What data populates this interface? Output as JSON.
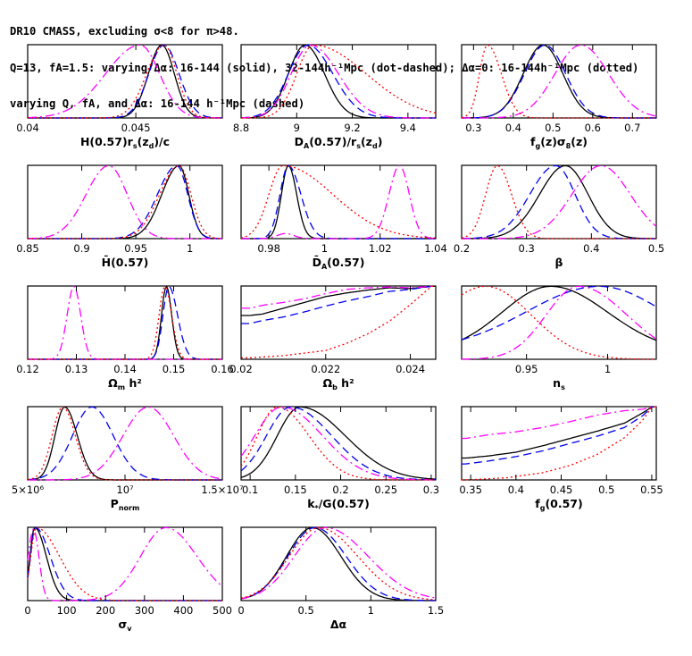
{
  "header": {
    "line1": "DR10 CMASS, excluding σ<8 for π>48.",
    "line2": "Q=13, fA=1.5: varying Δα: 16-144 (solid), 32-144h⁻¹Mpc (dot-dashed); Δα=0: 16-144h⁻¹Mpc (dotted)",
    "line3": "varying Q, fA, and Δα: 16-144 h⁻¹Mpc (dashed)"
  },
  "colors": {
    "solid": "#000000",
    "dashed": "#0000ee",
    "dotdashed": "#ff00ff",
    "dotted": "#ff0000"
  },
  "chart_data": [
    {
      "type": "line",
      "xlabel": "H(0.57)r_s(z_d)/c",
      "xlim": [
        0.04,
        0.049
      ],
      "ylim": [
        0,
        1
      ],
      "ticks": [
        "0.04",
        "0.045"
      ],
      "tick_values": [
        0.04,
        0.045
      ],
      "series": [
        {
          "style": "solid",
          "peak": 0.0462,
          "sl": 0.00062,
          "sr": 0.00058
        },
        {
          "style": "dashed",
          "peak": 0.0463,
          "sl": 0.0007,
          "sr": 0.0007
        },
        {
          "style": "dotdashed",
          "peak": 0.0452,
          "sl": 0.0016,
          "sr": 0.0009
        },
        {
          "style": "dotted",
          "peak": 0.0463,
          "sl": 0.0008,
          "sr": 0.0006
        }
      ]
    },
    {
      "type": "line",
      "xlabel": "D_A(0.57)/r_s(z_d)",
      "xlim": [
        8.8,
        9.5
      ],
      "ylim": [
        0,
        1
      ],
      "ticks": [
        "8.8",
        "9",
        "9.2",
        "9.4"
      ],
      "tick_values": [
        8.8,
        9.0,
        9.2,
        9.4
      ],
      "series": [
        {
          "style": "solid",
          "peak": 9.03,
          "sl": 0.06,
          "sr": 0.07
        },
        {
          "style": "dashed",
          "peak": 9.04,
          "sl": 0.07,
          "sr": 0.09
        },
        {
          "style": "dotdashed",
          "peak": 9.05,
          "sl": 0.07,
          "sr": 0.1
        },
        {
          "style": "dotted",
          "peak": 9.06,
          "sl": 0.06,
          "sr": 0.19
        }
      ]
    },
    {
      "type": "line",
      "xlabel": "f_g(z)σ_8(z)",
      "xlim": [
        0.27,
        0.76
      ],
      "ylim": [
        0,
        1
      ],
      "ticks": [
        "0.3",
        "0.4",
        "0.5",
        "0.6",
        "0.7"
      ],
      "tick_values": [
        0.3,
        0.4,
        0.5,
        0.6,
        0.7
      ],
      "series": [
        {
          "style": "solid",
          "peak": 0.475,
          "sl": 0.05,
          "sr": 0.05
        },
        {
          "style": "dashed",
          "peak": 0.48,
          "sl": 0.052,
          "sr": 0.052
        },
        {
          "style": "dotdashed",
          "peak": 0.57,
          "sl": 0.065,
          "sr": 0.07
        },
        {
          "style": "dotted",
          "peak": 0.335,
          "sl": 0.02,
          "sr": 0.035
        }
      ]
    },
    {
      "type": "line",
      "xlabel": "H̄(0.57)",
      "xlim": [
        0.85,
        1.03
      ],
      "ylim": [
        0,
        1
      ],
      "ticks": [
        "0.85",
        "0.9",
        "0.95",
        "1"
      ],
      "tick_values": [
        0.85,
        0.9,
        0.95,
        1.0
      ],
      "series": [
        {
          "style": "solid",
          "peak": 0.99,
          "sl": 0.016,
          "sr": 0.009
        },
        {
          "style": "dashed",
          "peak": 0.988,
          "sl": 0.018,
          "sr": 0.01
        },
        {
          "style": "dotdashed",
          "peak": 0.925,
          "sl": 0.021,
          "sr": 0.017
        },
        {
          "style": "dotted",
          "peak": 0.99,
          "sl": 0.018,
          "sr": 0.011
        }
      ]
    },
    {
      "type": "line",
      "xlabel": "D̄_A(0.57)",
      "xlim": [
        0.97,
        1.04
      ],
      "ylim": [
        0,
        1
      ],
      "ticks": [
        "0.98",
        "1",
        "1.02",
        "1.04"
      ],
      "tick_values": [
        0.98,
        1.0,
        1.02,
        1.04
      ],
      "series": [
        {
          "style": "solid",
          "peak": 0.987,
          "sl": 0.0025,
          "sr": 0.003
        },
        {
          "style": "dashed",
          "peak": 0.987,
          "sl": 0.003,
          "sr": 0.0045
        },
        {
          "style": "dotdashed",
          "peak": 1.027,
          "sl": 0.0038,
          "sr": 0.0035,
          "bump": [
            0.986,
            0.003,
            0.07
          ]
        },
        {
          "style": "dotted",
          "peak": 0.985,
          "sl": 0.005,
          "sr": 0.018
        }
      ]
    },
    {
      "type": "line",
      "xlabel": "β",
      "xlim": [
        0.2,
        0.5
      ],
      "ylim": [
        0,
        1
      ],
      "ticks": [
        "0.2",
        "0.3",
        "0.4",
        "0.5"
      ],
      "tick_values": [
        0.2,
        0.3,
        0.4,
        0.5
      ],
      "series": [
        {
          "style": "solid",
          "peak": 0.36,
          "sl": 0.04,
          "sr": 0.035
        },
        {
          "style": "dashed",
          "peak": 0.345,
          "sl": 0.04,
          "sr": 0.03
        },
        {
          "style": "dotdashed",
          "peak": 0.415,
          "sl": 0.045,
          "sr": 0.045
        },
        {
          "style": "dotted",
          "peak": 0.255,
          "sl": 0.018,
          "sr": 0.022
        }
      ]
    },
    {
      "type": "line",
      "xlabel": "Ω_m h²",
      "xlim": [
        0.12,
        0.16
      ],
      "ylim": [
        0,
        1
      ],
      "ticks": [
        "0.12",
        "0.13",
        "0.14",
        "0.15",
        "0.16"
      ],
      "tick_values": [
        0.12,
        0.13,
        0.14,
        0.15,
        0.16
      ],
      "series": [
        {
          "style": "solid",
          "peak": 0.1485,
          "sl": 0.001,
          "sr": 0.0011
        },
        {
          "style": "dashed",
          "peak": 0.149,
          "sl": 0.0012,
          "sr": 0.0018
        },
        {
          "style": "dotdashed",
          "peak": 0.1295,
          "sl": 0.0014,
          "sr": 0.0014
        },
        {
          "style": "dotted",
          "peak": 0.1482,
          "sl": 0.0012,
          "sr": 0.0014
        }
      ]
    },
    {
      "type": "line",
      "xlabel": "Ω_b h²",
      "xlim": [
        0.02,
        0.0246
      ],
      "ylim": [
        0,
        1
      ],
      "ticks": [
        "0.02",
        "0.022",
        "0.024"
      ],
      "tick_values": [
        0.02,
        0.022,
        0.024
      ],
      "series": [
        {
          "style": "solid",
          "points": [
            [
              0.0202,
              0.6
            ],
            [
              0.0205,
              0.62
            ],
            [
              0.021,
              0.7
            ],
            [
              0.0215,
              0.78
            ],
            [
              0.022,
              0.86
            ],
            [
              0.0225,
              0.91
            ],
            [
              0.023,
              0.95
            ],
            [
              0.0235,
              0.98
            ],
            [
              0.024,
              0.97
            ],
            [
              0.0245,
              1.0
            ]
          ]
        },
        {
          "style": "dashed",
          "points": [
            [
              0.0202,
              0.49
            ],
            [
              0.0205,
              0.53
            ],
            [
              0.021,
              0.58
            ],
            [
              0.0215,
              0.65
            ],
            [
              0.022,
              0.73
            ],
            [
              0.0225,
              0.8
            ],
            [
              0.023,
              0.86
            ],
            [
              0.0235,
              0.93
            ],
            [
              0.024,
              0.96
            ],
            [
              0.0245,
              1.0
            ]
          ]
        },
        {
          "style": "dotdashed",
          "points": [
            [
              0.0202,
              0.7
            ],
            [
              0.0205,
              0.74
            ],
            [
              0.021,
              0.78
            ],
            [
              0.0215,
              0.83
            ],
            [
              0.022,
              0.9
            ],
            [
              0.0225,
              0.96
            ],
            [
              0.023,
              0.98
            ],
            [
              0.0235,
              0.99
            ],
            [
              0.024,
              0.98
            ],
            [
              0.0245,
              1.0
            ]
          ]
        },
        {
          "style": "dotted",
          "points": [
            [
              0.0202,
              0.02
            ],
            [
              0.021,
              0.05
            ],
            [
              0.022,
              0.12
            ],
            [
              0.0225,
              0.22
            ],
            [
              0.023,
              0.35
            ],
            [
              0.0235,
              0.52
            ],
            [
              0.024,
              0.75
            ],
            [
              0.0243,
              0.9
            ],
            [
              0.0245,
              1.0
            ]
          ]
        }
      ]
    },
    {
      "type": "line",
      "xlabel": "n_s",
      "xlim": [
        0.91,
        1.03
      ],
      "ylim": [
        0,
        1
      ],
      "ticks": [
        "0.95",
        "1"
      ],
      "tick_values": [
        0.95,
        1.0
      ],
      "series": [
        {
          "style": "solid",
          "peak": 0.965,
          "sl": 0.03,
          "sr": 0.035,
          "floor": 0.1
        },
        {
          "style": "dashed",
          "peak": 0.995,
          "sl": 0.045,
          "sr": 0.04,
          "floor": 0.12
        },
        {
          "style": "dotdashed",
          "peak": 0.982,
          "sl": 0.02,
          "sr": 0.03
        },
        {
          "style": "dotted",
          "peak": 0.925,
          "sl": 0.03,
          "sr": 0.028
        }
      ]
    },
    {
      "type": "line",
      "xlabel": "P_norm",
      "xlim": [
        5000000,
        15000000
      ],
      "ylim": [
        0,
        1
      ],
      "ticks": [
        "5×10⁶",
        "10⁷",
        "1.5×10⁷"
      ],
      "tick_values": [
        5000000,
        10000000,
        15000000
      ],
      "series": [
        {
          "style": "solid",
          "peak": 6900000,
          "sl": 500000,
          "sr": 650000
        },
        {
          "style": "dashed",
          "peak": 8300000,
          "sl": 1000000,
          "sr": 1100000
        },
        {
          "style": "dotdashed",
          "peak": 11200000,
          "sl": 1300000,
          "sr": 1300000
        },
        {
          "style": "dotted",
          "peak": 6800000,
          "sl": 550000,
          "sr": 650000
        }
      ]
    },
    {
      "type": "line",
      "xlabel": "k_*/G(0.57)",
      "xlim": [
        0.09,
        0.305
      ],
      "ylim": [
        0,
        1
      ],
      "ticks": [
        "0.1",
        "0.15",
        "0.2",
        "0.25",
        "0.3"
      ],
      "tick_values": [
        0.1,
        0.15,
        0.2,
        0.25,
        0.3
      ],
      "series": [
        {
          "style": "solid",
          "peak": 0.155,
          "sl": 0.025,
          "sr": 0.05
        },
        {
          "style": "dashed",
          "peak": 0.145,
          "sl": 0.027,
          "sr": 0.045
        },
        {
          "style": "dotdashed",
          "peak": 0.135,
          "sl": 0.03,
          "sr": 0.045
        },
        {
          "style": "dotted",
          "peak": 0.13,
          "sl": 0.022,
          "sr": 0.035
        }
      ]
    },
    {
      "type": "line",
      "xlabel": "f_g(0.57)",
      "xlim": [
        0.34,
        0.555
      ],
      "ylim": [
        0,
        1
      ],
      "ticks": [
        "0.35",
        "0.4",
        "0.45",
        "0.5",
        "0.55"
      ],
      "tick_values": [
        0.35,
        0.4,
        0.45,
        0.5,
        0.55
      ],
      "series": [
        {
          "style": "solid",
          "points": [
            [
              0.345,
              0.3
            ],
            [
              0.37,
              0.33
            ],
            [
              0.4,
              0.38
            ],
            [
              0.43,
              0.47
            ],
            [
              0.46,
              0.57
            ],
            [
              0.49,
              0.67
            ],
            [
              0.52,
              0.78
            ],
            [
              0.54,
              0.92
            ],
            [
              0.55,
              1.0
            ]
          ]
        },
        {
          "style": "dashed",
          "points": [
            [
              0.345,
              0.22
            ],
            [
              0.37,
              0.26
            ],
            [
              0.4,
              0.32
            ],
            [
              0.43,
              0.4
            ],
            [
              0.46,
              0.5
            ],
            [
              0.49,
              0.6
            ],
            [
              0.52,
              0.72
            ],
            [
              0.54,
              0.88
            ],
            [
              0.55,
              1.0
            ]
          ]
        },
        {
          "style": "dotdashed",
          "points": [
            [
              0.345,
              0.57
            ],
            [
              0.37,
              0.62
            ],
            [
              0.4,
              0.66
            ],
            [
              0.43,
              0.72
            ],
            [
              0.46,
              0.8
            ],
            [
              0.49,
              0.89
            ],
            [
              0.52,
              0.95
            ],
            [
              0.54,
              0.97
            ],
            [
              0.55,
              1.0
            ]
          ]
        },
        {
          "style": "dotted",
          "points": [
            [
              0.345,
              0.0
            ],
            [
              0.39,
              0.03
            ],
            [
              0.43,
              0.1
            ],
            [
              0.46,
              0.2
            ],
            [
              0.49,
              0.35
            ],
            [
              0.52,
              0.58
            ],
            [
              0.54,
              0.82
            ],
            [
              0.55,
              1.0
            ]
          ]
        }
      ]
    },
    {
      "type": "line",
      "xlabel": "σ_v",
      "xlim": [
        0,
        500
      ],
      "ylim": [
        0,
        1
      ],
      "ticks": [
        "0",
        "100",
        "200",
        "300",
        "400",
        "500"
      ],
      "tick_values": [
        0,
        100,
        200,
        300,
        400,
        500
      ],
      "series": [
        {
          "style": "solid",
          "peak": 18,
          "sl": 12,
          "sr": 30
        },
        {
          "style": "dashed",
          "peak": 20,
          "sl": 13,
          "sr": 38
        },
        {
          "style": "dotdashed",
          "peak": 355,
          "sl": 65,
          "sr": 80,
          "bump": [
            15,
            14,
            0.98
          ]
        },
        {
          "style": "dotted",
          "peak": 22,
          "sl": 14,
          "sr": 60
        }
      ]
    },
    {
      "type": "line",
      "xlabel": "Δα",
      "xlim": [
        0,
        1.5
      ],
      "ylim": [
        0,
        1
      ],
      "ticks": [
        "0",
        "0.5",
        "1",
        "1.5"
      ],
      "tick_values": [
        0,
        0.5,
        1,
        1.5
      ],
      "series": [
        {
          "style": "solid",
          "peak": 0.55,
          "sl": 0.2,
          "sr": 0.22
        },
        {
          "style": "dashed",
          "peak": 0.57,
          "sl": 0.21,
          "sr": 0.24
        },
        {
          "style": "dotdashed",
          "peak": 0.65,
          "sl": 0.24,
          "sr": 0.33
        },
        {
          "style": "dotted",
          "peak": 0.6,
          "sl": 0.23,
          "sr": 0.3
        }
      ]
    }
  ]
}
